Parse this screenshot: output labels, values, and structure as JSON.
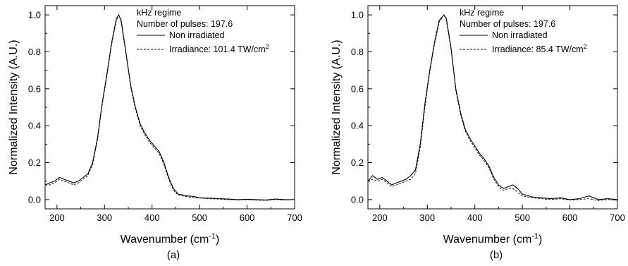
{
  "chart_data": [
    {
      "type": "line",
      "panel_label": "(a)",
      "xlabel": "Wavenumber (cm",
      "xlabel_sup": "-1",
      "xlabel_end": ")",
      "ylabel": "Normalized Intensity (A.U.)",
      "xlim": [
        175,
        700
      ],
      "ylim": [
        -0.05,
        1.05
      ],
      "xticks": [
        200,
        300,
        400,
        500,
        600,
        700
      ],
      "yticks": [
        0.0,
        0.2,
        0.4,
        0.6,
        0.8,
        1.0
      ],
      "ytick_labels": [
        "0.0",
        "0.2",
        "0.4",
        "0.6",
        "0.8",
        "1.0"
      ],
      "annotations": [
        "kHz regime",
        "Number of pulses: 197.6"
      ],
      "series": [
        {
          "name": "Non irradiated",
          "style": "solid",
          "x": [
            175,
            185,
            195,
            205,
            215,
            225,
            235,
            245,
            255,
            265,
            275,
            285,
            295,
            305,
            315,
            325,
            330,
            335,
            345,
            355,
            365,
            375,
            385,
            395,
            405,
            415,
            425,
            435,
            445,
            455,
            465,
            475,
            485,
            500,
            520,
            540,
            560,
            580,
            600,
            620,
            640,
            660,
            680,
            700
          ],
          "y": [
            0.08,
            0.09,
            0.1,
            0.12,
            0.11,
            0.1,
            0.09,
            0.1,
            0.12,
            0.14,
            0.2,
            0.33,
            0.52,
            0.68,
            0.85,
            0.98,
            1.0,
            0.97,
            0.8,
            0.62,
            0.5,
            0.41,
            0.36,
            0.32,
            0.29,
            0.26,
            0.2,
            0.12,
            0.06,
            0.03,
            0.025,
            0.02,
            0.018,
            0.01,
            0.008,
            0.005,
            0.003,
            0.0,
            0.002,
            0.0,
            -0.002,
            0.003,
            0.0,
            0.0
          ]
        },
        {
          "name": "Irradiance: 101.4 TW/cm",
          "name_sup": "2",
          "style": "dashed",
          "x": [
            175,
            185,
            195,
            205,
            215,
            225,
            235,
            245,
            255,
            265,
            275,
            285,
            295,
            305,
            315,
            325,
            330,
            335,
            345,
            355,
            365,
            375,
            385,
            395,
            405,
            415,
            425,
            435,
            445,
            455,
            465,
            475,
            485,
            500,
            520,
            540,
            560,
            580,
            600,
            620,
            640,
            660,
            680,
            700
          ],
          "y": [
            0.08,
            0.08,
            0.09,
            0.11,
            0.1,
            0.09,
            0.08,
            0.09,
            0.11,
            0.13,
            0.19,
            0.32,
            0.51,
            0.67,
            0.84,
            0.97,
            1.0,
            0.96,
            0.79,
            0.61,
            0.49,
            0.4,
            0.35,
            0.31,
            0.28,
            0.25,
            0.19,
            0.11,
            0.05,
            0.025,
            0.02,
            0.015,
            0.012,
            0.008,
            0.005,
            0.003,
            0.0,
            -0.002,
            0.0,
            -0.003,
            -0.004,
            0.0,
            -0.002,
            0.0
          ]
        }
      ]
    },
    {
      "type": "line",
      "panel_label": "(b)",
      "xlabel": "Wavenumber (cm",
      "xlabel_sup": "-1",
      "xlabel_end": ")",
      "ylabel": "Normalized Intensity (A.U.)",
      "xlim": [
        175,
        700
      ],
      "ylim": [
        -0.05,
        1.05
      ],
      "xticks": [
        200,
        300,
        400,
        500,
        600,
        700
      ],
      "yticks": [
        0.0,
        0.2,
        0.4,
        0.6,
        0.8,
        1.0
      ],
      "ytick_labels": [
        "0.0",
        "0.2",
        "0.4",
        "0.6",
        "0.8",
        "1.0"
      ],
      "annotations": [
        "kHz regime",
        "Number of pulses: 197.6"
      ],
      "series": [
        {
          "name": "Non irradiated",
          "style": "solid",
          "x": [
            175,
            185,
            195,
            205,
            215,
            225,
            235,
            245,
            255,
            265,
            275,
            285,
            295,
            305,
            315,
            325,
            335,
            340,
            350,
            360,
            370,
            380,
            390,
            400,
            410,
            420,
            430,
            440,
            450,
            460,
            470,
            480,
            490,
            500,
            520,
            540,
            560,
            580,
            600,
            620,
            640,
            660,
            680,
            700
          ],
          "y": [
            0.1,
            0.13,
            0.11,
            0.12,
            0.1,
            0.08,
            0.09,
            0.1,
            0.11,
            0.13,
            0.16,
            0.3,
            0.52,
            0.7,
            0.85,
            0.97,
            1.0,
            0.98,
            0.82,
            0.6,
            0.47,
            0.38,
            0.33,
            0.29,
            0.25,
            0.22,
            0.18,
            0.12,
            0.08,
            0.06,
            0.07,
            0.08,
            0.06,
            0.03,
            0.015,
            0.01,
            0.005,
            0.01,
            0.0,
            0.005,
            0.02,
            0.0,
            0.005,
            0.0
          ]
        },
        {
          "name": "Irradiance: 85.4 TW/cm",
          "name_sup": "2",
          "style": "dashed",
          "x": [
            175,
            185,
            195,
            205,
            215,
            225,
            235,
            245,
            255,
            265,
            275,
            285,
            295,
            305,
            315,
            325,
            335,
            340,
            350,
            360,
            370,
            380,
            390,
            400,
            410,
            420,
            430,
            440,
            450,
            460,
            470,
            480,
            490,
            500,
            520,
            540,
            560,
            580,
            600,
            620,
            640,
            660,
            680,
            700
          ],
          "y": [
            0.1,
            0.11,
            0.1,
            0.11,
            0.09,
            0.07,
            0.08,
            0.09,
            0.1,
            0.11,
            0.14,
            0.28,
            0.5,
            0.69,
            0.84,
            0.96,
            1.0,
            0.97,
            0.81,
            0.59,
            0.46,
            0.37,
            0.32,
            0.28,
            0.24,
            0.21,
            0.17,
            0.11,
            0.07,
            0.05,
            0.06,
            0.06,
            0.04,
            0.02,
            0.01,
            0.005,
            0.0,
            0.005,
            -0.002,
            0.0,
            0.005,
            -0.005,
            0.0,
            -0.003
          ]
        }
      ]
    }
  ]
}
